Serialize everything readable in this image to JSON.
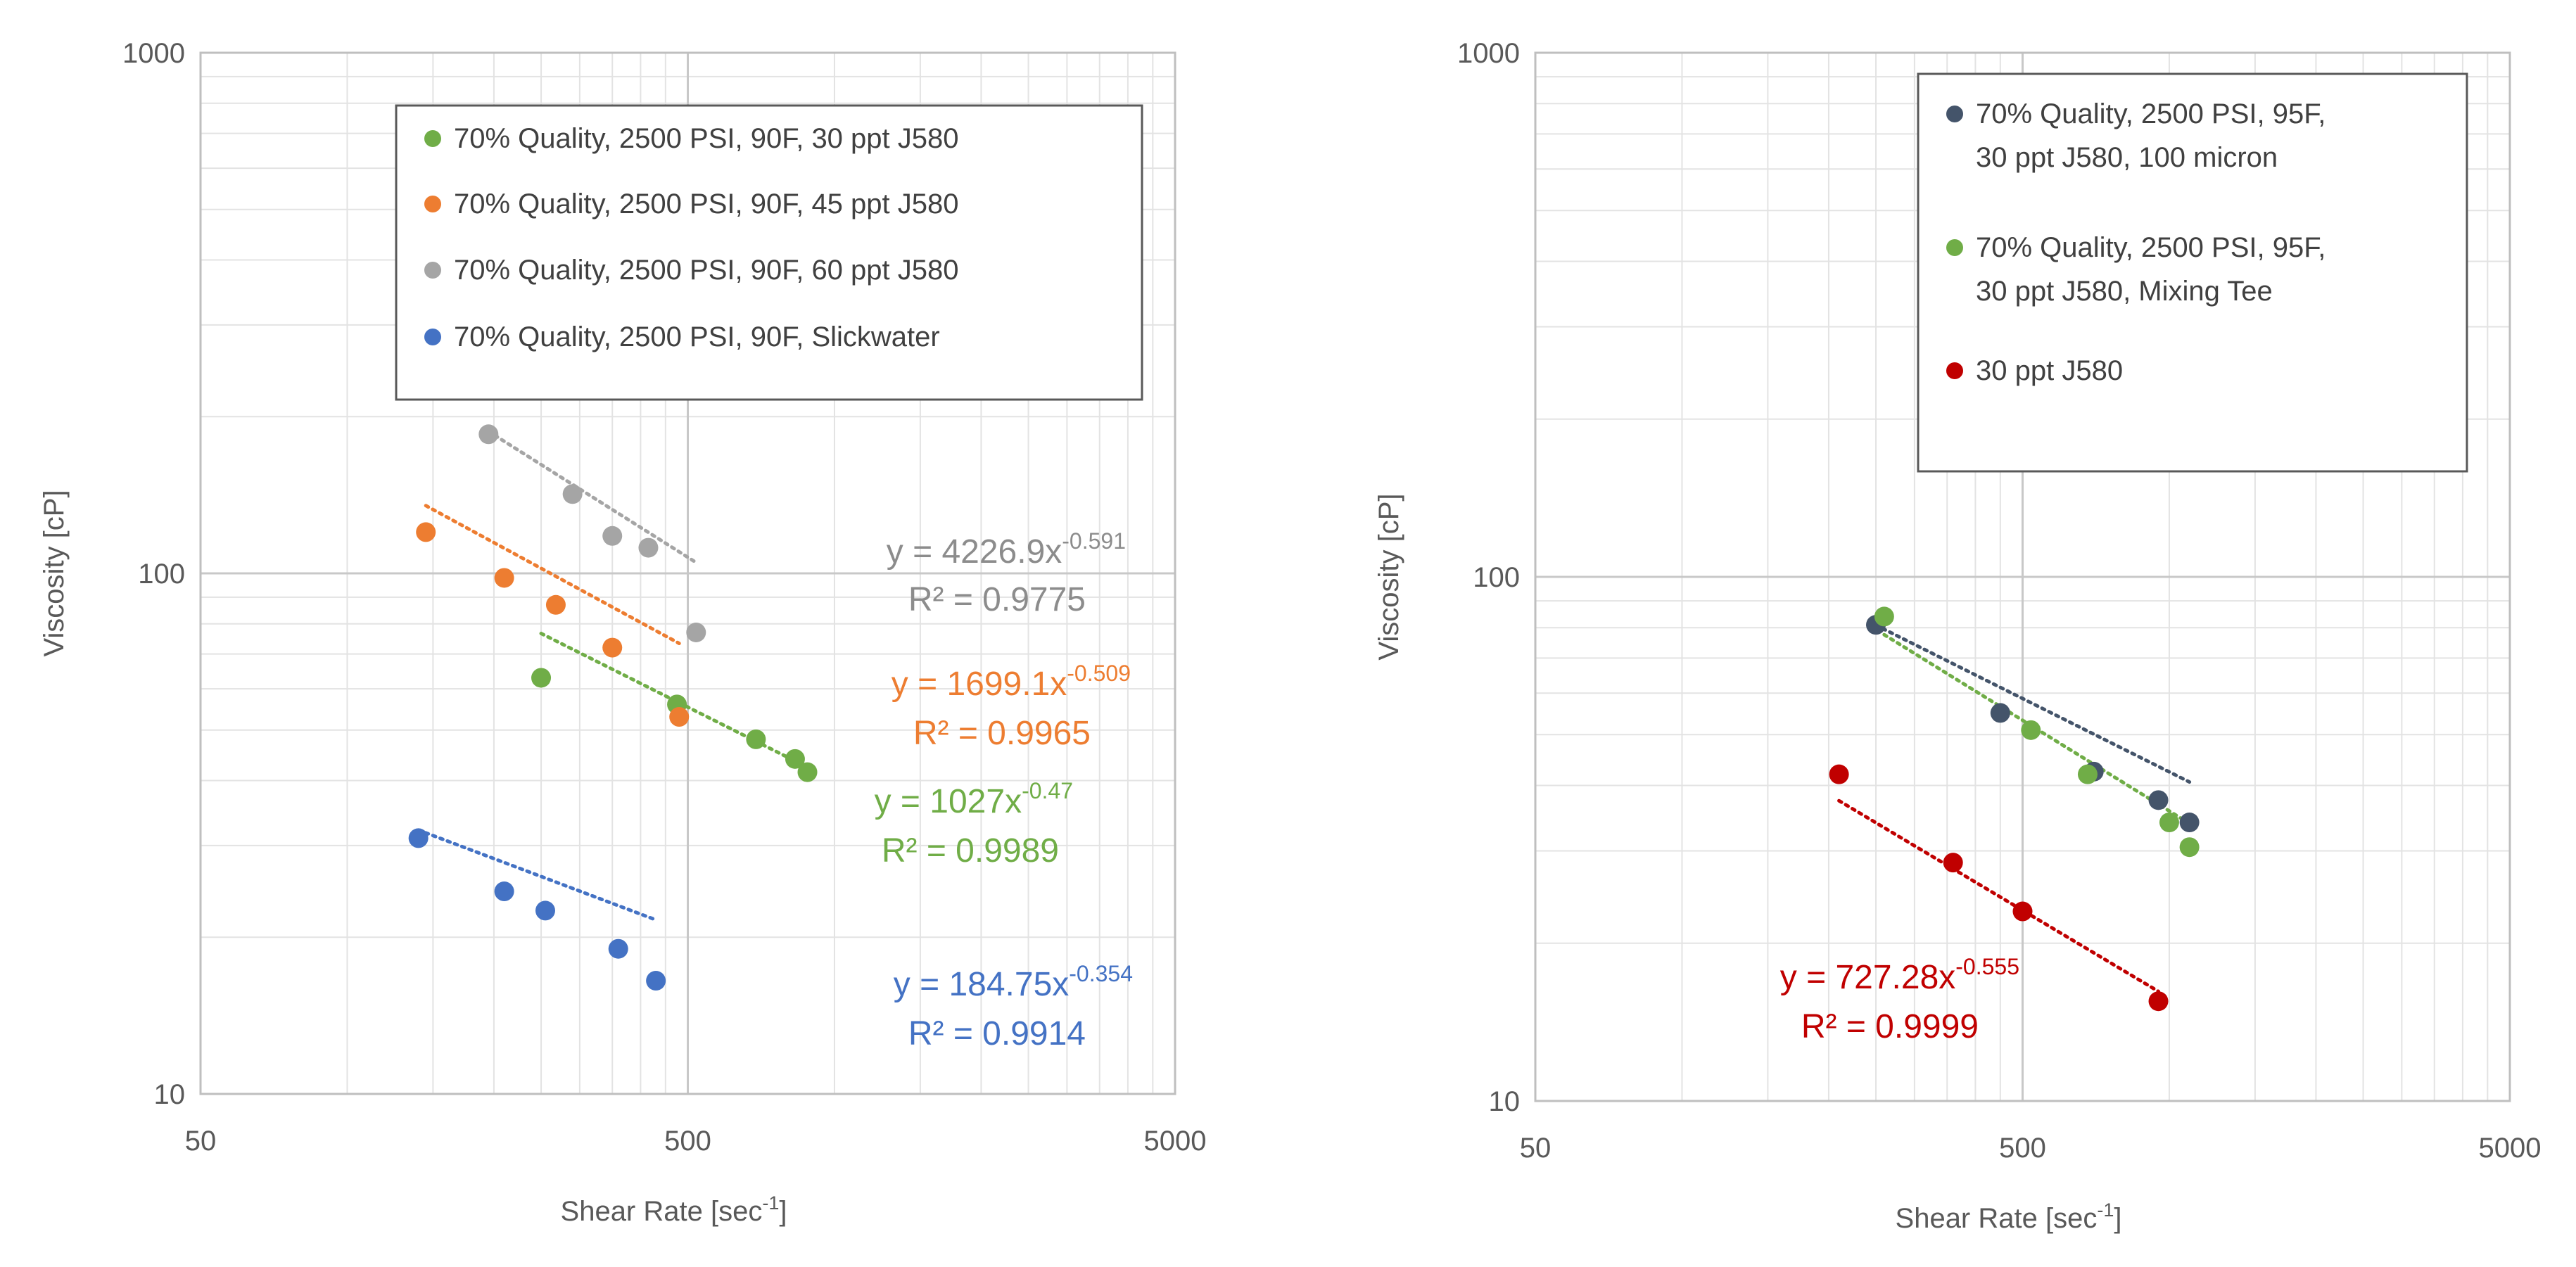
{
  "chart_data": [
    {
      "type": "scatter",
      "scale": "log-log",
      "xlabel": "Shear Rate [sec",
      "xlabel_sup": "-1",
      "xlabel_suffix": "]",
      "ylabel": "Viscosity [cP]",
      "xlim": [
        50,
        5000
      ],
      "ylim": [
        10,
        1000
      ],
      "x_ticks": [
        "50",
        "500",
        "5000"
      ],
      "y_ticks": [
        "1000",
        "100",
        "10"
      ],
      "legend_position": "top-right",
      "series": [
        {
          "name": "70% Quality, 2500 PSI, 90F, 30 ppt J580",
          "color": "#70ad47",
          "x": [
            250,
            475,
            690,
            830,
            880
          ],
          "y": [
            63,
            56,
            48,
            44,
            41.5
          ],
          "fit": {
            "a": 1027,
            "b": -0.47,
            "x_range": [
              250,
              880
            ],
            "eq": "y = 1027x",
            "exp": "-0.47",
            "r2": "R² = 0.9989"
          }
        },
        {
          "name": "70% Quality, 2500 PSI, 90F, 45 ppt J580",
          "color": "#ed7d31",
          "x": [
            145,
            210,
            268,
            350,
            480
          ],
          "y": [
            120,
            98,
            87,
            72,
            53
          ],
          "fit": {
            "a": 1699.1,
            "b": -0.509,
            "x_range": [
              145,
              480
            ],
            "eq": "y = 1699.1x",
            "exp": "-0.509",
            "r2": "R² = 0.9965"
          }
        },
        {
          "name": "70% Quality, 2500 PSI, 90F, 60 ppt J580",
          "color": "#a5a5a5",
          "x": [
            195,
            290,
            350,
            415,
            520
          ],
          "y": [
            185,
            142,
            118,
            112,
            77
          ],
          "fit": {
            "a": 4226.9,
            "b": -0.591,
            "x_range": [
              195,
              520
            ],
            "eq": "y = 4226.9x",
            "exp": "-0.591",
            "r2": "R² = 0.9775"
          }
        },
        {
          "name": "70% Quality, 2500 PSI, 90F, Slickwater",
          "color": "#4472c4",
          "x": [
            140,
            210,
            255,
            360,
            430
          ],
          "y": [
            31,
            24.5,
            22.5,
            19,
            16.5
          ],
          "fit": {
            "a": 184.75,
            "b": -0.354,
            "x_range": [
              140,
              430
            ],
            "eq": "y = 184.75x",
            "exp": "-0.354",
            "r2": "R² = 0.9914"
          }
        }
      ]
    },
    {
      "type": "scatter",
      "scale": "log-log",
      "xlabel": "Shear Rate [sec",
      "xlabel_sup": "-1",
      "xlabel_suffix": "]",
      "ylabel": "Viscosity [cP]",
      "xlim": [
        50,
        5000
      ],
      "ylim": [
        10,
        1000
      ],
      "x_ticks": [
        "50",
        "500",
        "5000"
      ],
      "y_ticks": [
        "1000",
        "100",
        "10"
      ],
      "legend_position": "top-right",
      "series": [
        {
          "name": "70% Quality, 2500 PSI, 95F, 30 ppt J580, 100 micron",
          "legend_lines": [
            "70% Quality, 2500 PSI, 95F,",
            "30 ppt J580, 100 micron"
          ],
          "color": "#44546a",
          "x": [
            250,
            450,
            700,
            950,
            1100
          ],
          "y": [
            81,
            55,
            42.5,
            37.5,
            34
          ],
          "fit": {
            "a": 1054.1,
            "b": -0.465,
            "x_range": [
              250,
              1100
            ],
            "eq": "",
            "exp": "",
            "r2": ""
          }
        },
        {
          "name": "70% Quality, 2500 PSI, 95F, 30 ppt J580, Mixing Tee",
          "legend_lines": [
            "70% Quality, 2500 PSI, 95F,",
            "30 ppt J580, Mixing Tee"
          ],
          "color": "#70ad47",
          "x": [
            260,
            520,
            680,
            1000,
            1100
          ],
          "y": [
            84,
            51,
            42,
            34,
            30.5
          ],
          "fit": {
            "a": 1897.8,
            "b": -0.575,
            "x_range": [
              260,
              1100
            ],
            "eq": "",
            "exp": "",
            "r2": ""
          }
        },
        {
          "name": "30 ppt J580",
          "legend_lines": [
            "30 ppt J580"
          ],
          "color": "#c00000",
          "x": [
            210,
            360,
            500,
            950
          ],
          "y": [
            42,
            28.5,
            23,
            15.5
          ],
          "fit": {
            "a": 727.28,
            "b": -0.555,
            "x_range": [
              210,
              950
            ],
            "eq": "y = 727.28x",
            "exp": "-0.555",
            "r2": "R² = 0.9999"
          }
        }
      ]
    }
  ]
}
